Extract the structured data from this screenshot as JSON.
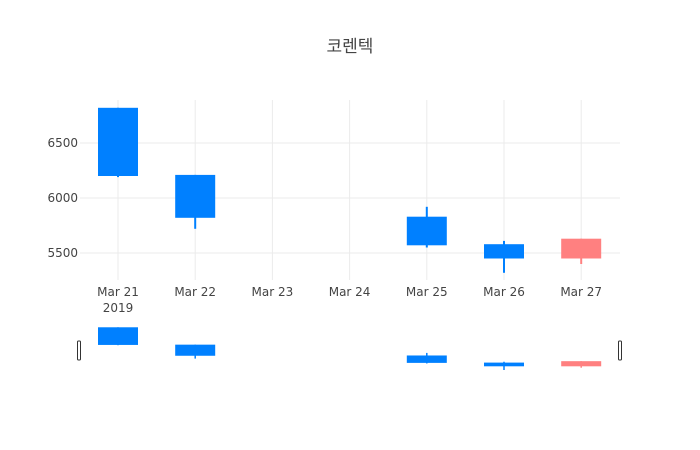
{
  "chart_data": {
    "type": "candlestick",
    "title": "코렌텍",
    "xlabel": "",
    "ylabel": "",
    "categories": [
      "Mar 21",
      "Mar 22",
      "Mar 23",
      "Mar 24",
      "Mar 25",
      "Mar 26",
      "Mar 27"
    ],
    "x_year_label": "2019",
    "series": [
      {
        "date": "Mar 21",
        "open": 6820,
        "high": 6820,
        "low": 6190,
        "close": 6200,
        "direction": "decreasing"
      },
      {
        "date": "Mar 22",
        "open": 6210,
        "high": 6210,
        "low": 5720,
        "close": 5820,
        "direction": "decreasing"
      },
      {
        "date": "Mar 25",
        "open": 5830,
        "high": 5920,
        "low": 5550,
        "close": 5570,
        "direction": "decreasing"
      },
      {
        "date": "Mar 26",
        "open": 5580,
        "high": 5610,
        "low": 5320,
        "close": 5450,
        "direction": "decreasing"
      },
      {
        "date": "Mar 27",
        "open": 5450,
        "high": 5630,
        "low": 5400,
        "close": 5630,
        "direction": "increasing"
      }
    ],
    "y_ticks": [
      5500,
      6000,
      6500
    ],
    "ylim": [
      5250,
      6900
    ],
    "grid": true,
    "legend": false,
    "rangeslider": true,
    "colors": {
      "increasing": "#ff8080",
      "decreasing": "#0080ff",
      "grid": "#ebebeb"
    }
  }
}
